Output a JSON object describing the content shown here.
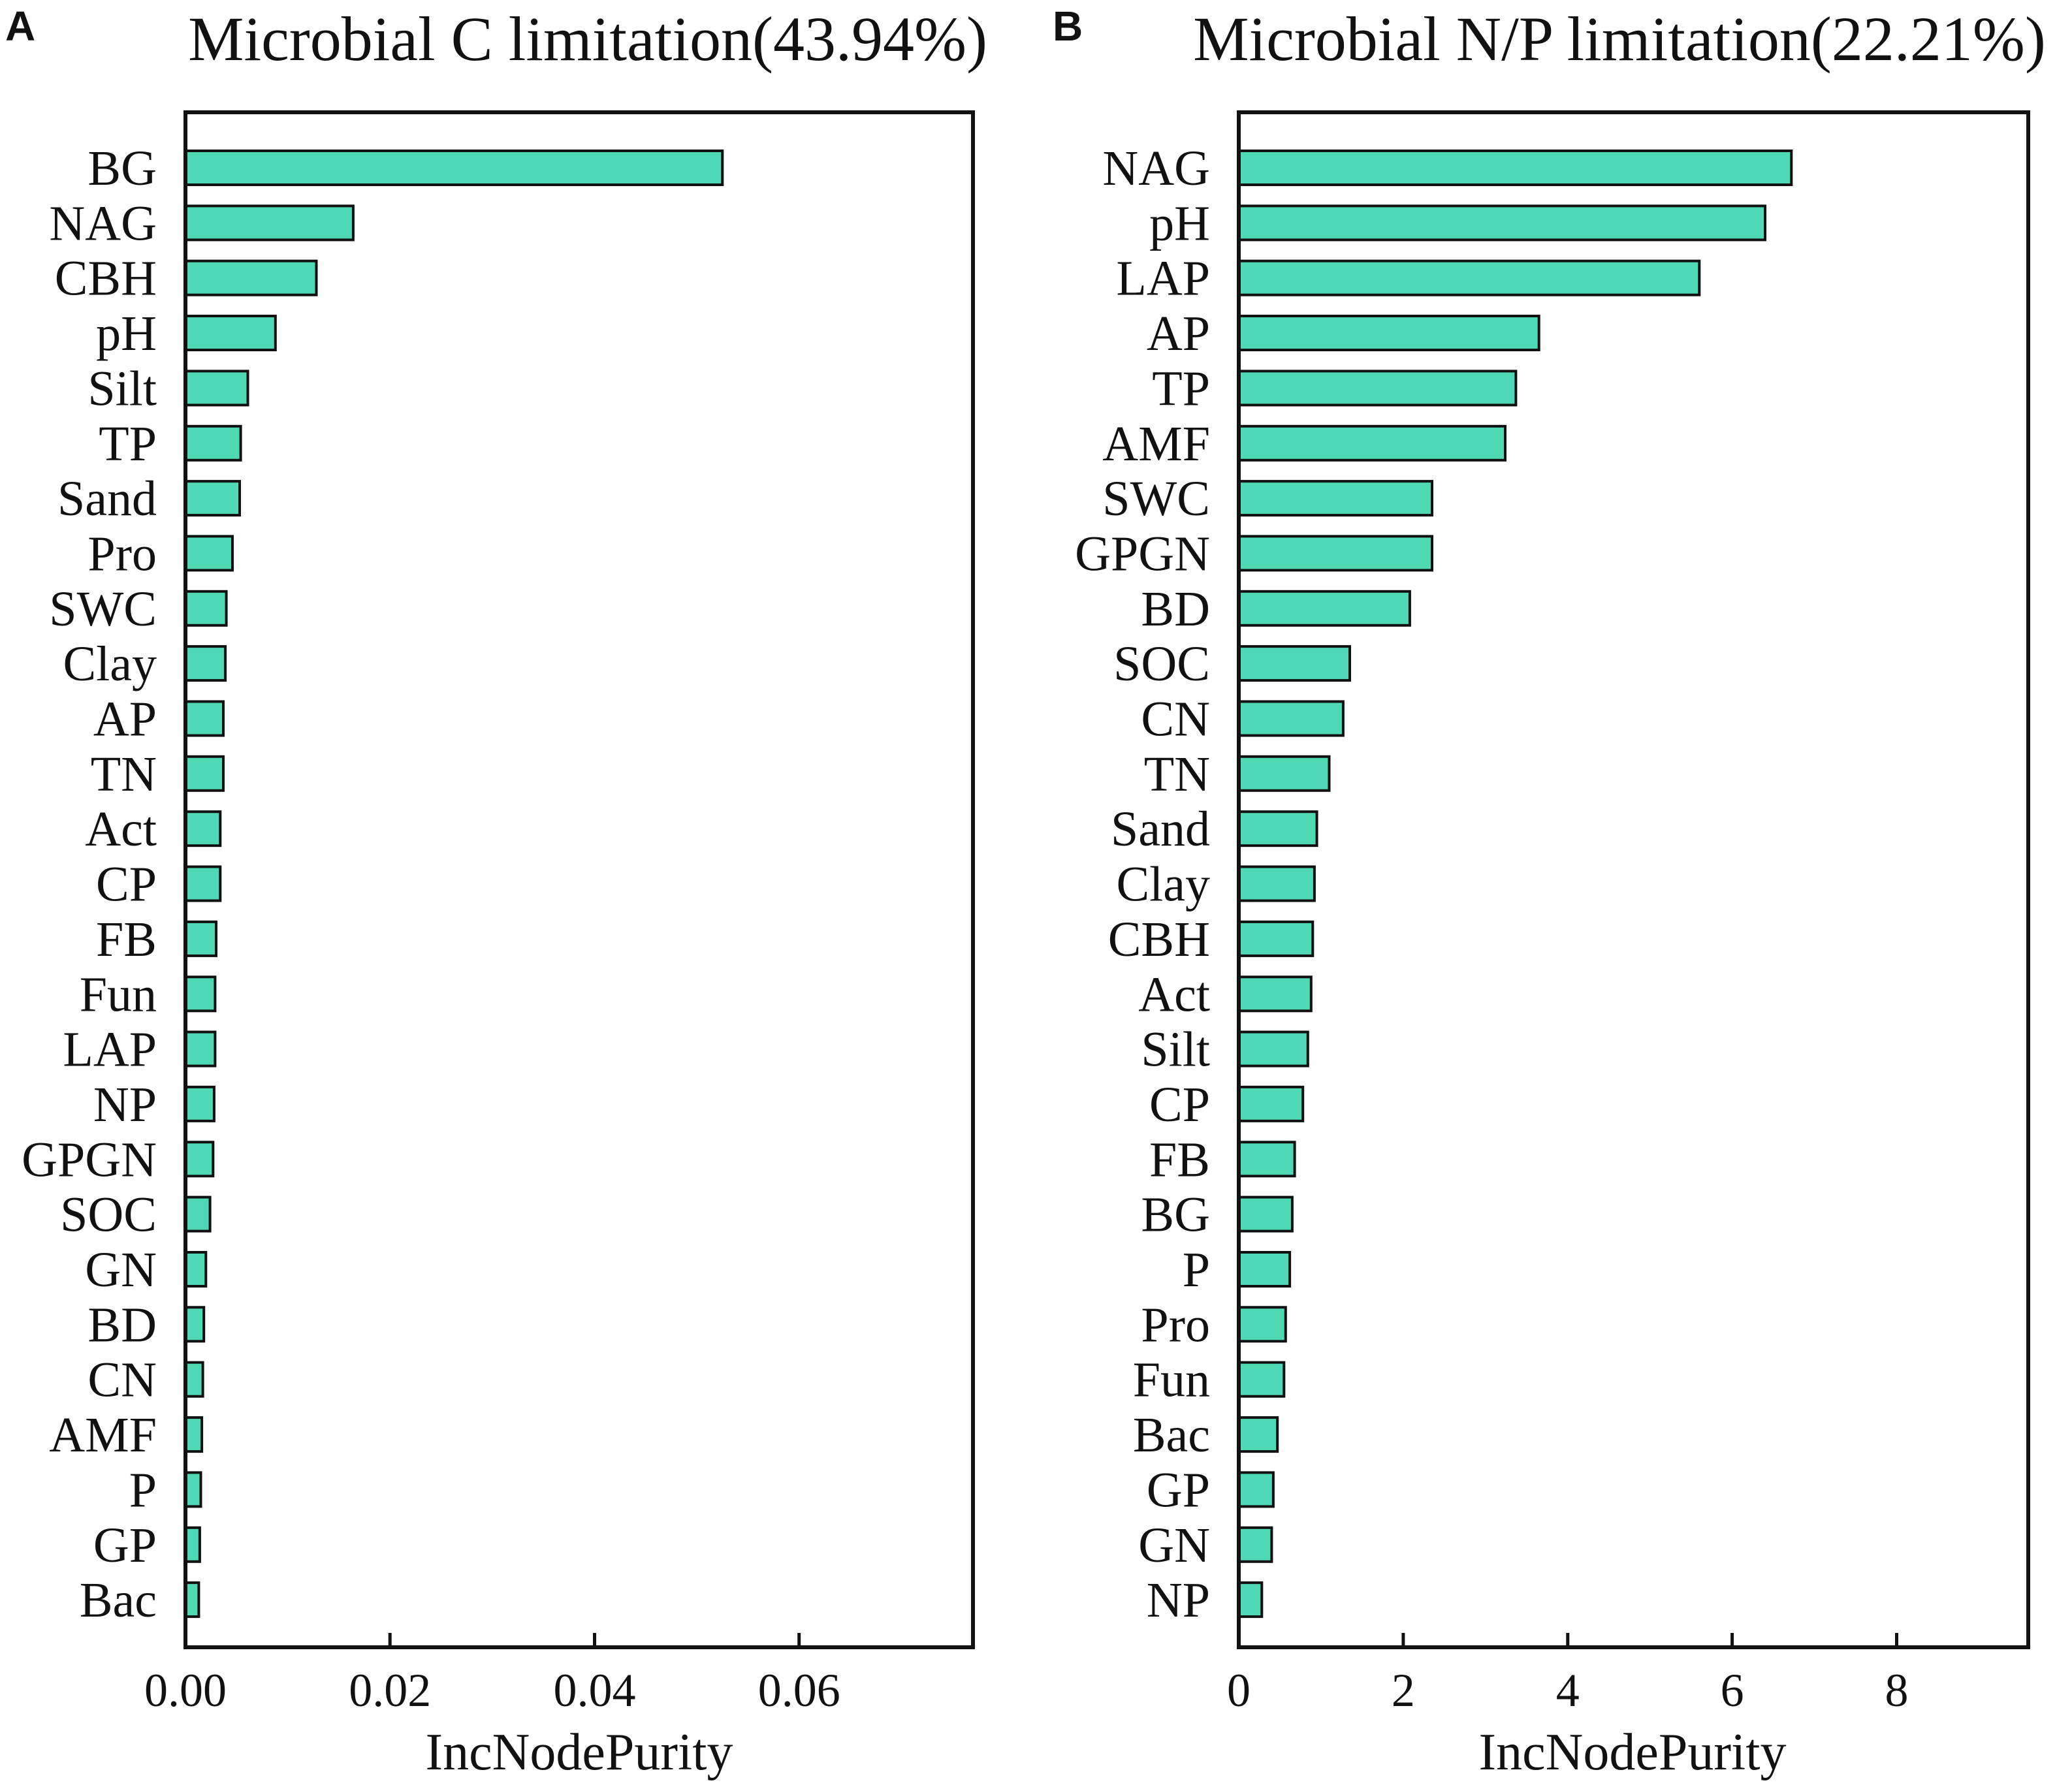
{
  "chart_data": [
    {
      "type": "bar",
      "orientation": "horizontal",
      "panel": "A",
      "title": "Microbial C limitation(43.94%)",
      "xlabel": "IncNodePurity",
      "ylabel": "",
      "xlim": [
        0,
        0.077
      ],
      "xticks": [
        0,
        0.02,
        0.04,
        0.06
      ],
      "xtick_labels": [
        "0.00",
        "0.02",
        "0.04",
        "0.06"
      ],
      "bar_color": "#4fd8b4",
      "categories": [
        "BG",
        "NAG",
        "CBH",
        "pH",
        "Silt",
        "TP",
        "Sand",
        "Pro",
        "SWC",
        "Clay",
        "AP",
        "TN",
        "Act",
        "CP",
        "FB",
        "Fun",
        "LAP",
        "NP",
        "GPGN",
        "SOC",
        "GN",
        "BD",
        "CN",
        "AMF",
        "P",
        "GP",
        "Bac"
      ],
      "values": [
        0.0525,
        0.0164,
        0.0128,
        0.0088,
        0.0061,
        0.0054,
        0.0053,
        0.0046,
        0.004,
        0.0039,
        0.0037,
        0.0037,
        0.0034,
        0.0034,
        0.003,
        0.0029,
        0.0029,
        0.0028,
        0.0027,
        0.0024,
        0.002,
        0.0018,
        0.0017,
        0.0016,
        0.0015,
        0.0014,
        0.0013
      ]
    },
    {
      "type": "bar",
      "orientation": "horizontal",
      "panel": "B",
      "title": "Microbial N/P limitation(22.21%)",
      "xlabel": "IncNodePurity",
      "ylabel": "",
      "xlim": [
        0,
        9.6
      ],
      "xticks": [
        0,
        2,
        4,
        6,
        8
      ],
      "xtick_labels": [
        "0",
        "2",
        "4",
        "6",
        "8"
      ],
      "bar_color": "#4fd8b4",
      "categories": [
        "NAG",
        "pH",
        "LAP",
        "AP",
        "TP",
        "AMF",
        "SWC",
        "GPGN",
        "BD",
        "SOC",
        "CN",
        "TN",
        "Sand",
        "Clay",
        "CBH",
        "Act",
        "Silt",
        "CP",
        "FB",
        "BG",
        "P",
        "Pro",
        "Fun",
        "Bac",
        "GP",
        "GN",
        "NP"
      ],
      "values": [
        6.72,
        6.4,
        5.6,
        3.65,
        3.37,
        3.24,
        2.35,
        2.35,
        2.08,
        1.35,
        1.27,
        1.1,
        0.95,
        0.92,
        0.9,
        0.88,
        0.84,
        0.78,
        0.68,
        0.65,
        0.62,
        0.57,
        0.55,
        0.47,
        0.42,
        0.4,
        0.28
      ]
    }
  ]
}
